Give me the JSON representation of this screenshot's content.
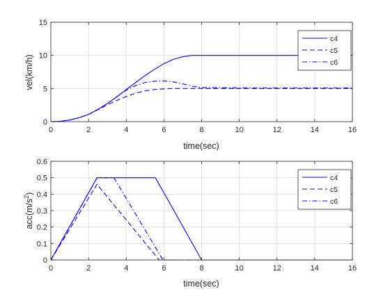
{
  "colors": {
    "series": "#0000ff",
    "axis": "#262626",
    "grid": "#dfdfdf",
    "background": "#ffffff"
  },
  "chart_data": [
    {
      "type": "line",
      "xlabel": "time(sec)",
      "ylabel": "vel(km/h)",
      "xlim": [
        0,
        16
      ],
      "ylim": [
        0,
        15
      ],
      "xticks": [
        "0",
        "2",
        "4",
        "6",
        "8",
        "10",
        "12",
        "14",
        "16"
      ],
      "yticks": [
        "0",
        "5",
        "10",
        "15"
      ],
      "grid": true,
      "legend_position": "top-right",
      "series": [
        {
          "name": "c4",
          "style": "solid",
          "x": [
            0,
            0.5,
            1,
            1.5,
            2,
            2.5,
            3,
            3.5,
            4,
            4.5,
            5,
            5.5,
            6,
            6.5,
            7,
            7.5,
            8,
            10,
            12,
            14,
            16
          ],
          "y": [
            0,
            0.05,
            0.25,
            0.6,
            1.1,
            1.85,
            2.75,
            3.75,
            4.85,
            5.9,
            6.95,
            7.9,
            8.75,
            9.4,
            9.8,
            10.0,
            10.0,
            10.0,
            10.0,
            10.0,
            10.0
          ]
        },
        {
          "name": "c5",
          "style": "dashed",
          "x": [
            0,
            0.5,
            1,
            1.5,
            2,
            2.5,
            3,
            3.5,
            4,
            4.5,
            5,
            5.5,
            6,
            6.5,
            7,
            8,
            10,
            12,
            14,
            16
          ],
          "y": [
            0,
            0.05,
            0.25,
            0.6,
            1.1,
            1.8,
            2.55,
            3.2,
            3.8,
            4.3,
            4.65,
            4.85,
            4.95,
            5.0,
            5.0,
            5.0,
            5.0,
            5.0,
            5.0,
            5.0
          ]
        },
        {
          "name": "c6",
          "style": "dashdot",
          "x": [
            0,
            0.5,
            1,
            1.5,
            2,
            2.5,
            3,
            3.5,
            4,
            4.5,
            5,
            5.5,
            6,
            6.5,
            7,
            7.5,
            8,
            10,
            12,
            14,
            16
          ],
          "y": [
            0,
            0.05,
            0.25,
            0.6,
            1.1,
            1.85,
            2.75,
            3.75,
            4.75,
            5.45,
            5.9,
            6.1,
            6.15,
            6.0,
            5.7,
            5.35,
            5.15,
            5.1,
            5.1,
            5.1,
            5.1
          ]
        }
      ]
    },
    {
      "type": "line",
      "xlabel": "time(sec)",
      "ylabel": "acc(m/s",
      "ylabel_sup": "2",
      "ylabel_end": ")",
      "xlim": [
        0,
        16
      ],
      "ylim": [
        0,
        0.6
      ],
      "xticks": [
        "0",
        "2",
        "4",
        "6",
        "8",
        "10",
        "12",
        "14",
        "16"
      ],
      "yticks": [
        "0",
        "0.1",
        "0.2",
        "0.3",
        "0.4",
        "0.5",
        "0.6"
      ],
      "grid": true,
      "legend_position": "top-right",
      "series": [
        {
          "name": "c4",
          "style": "solid",
          "x": [
            0,
            2.45,
            5.55,
            8.0,
            16
          ],
          "y": [
            0,
            0.5,
            0.5,
            0,
            0
          ]
        },
        {
          "name": "c5",
          "style": "dashed",
          "x": [
            0,
            2.45,
            5.75,
            16
          ],
          "y": [
            0,
            0.46,
            0,
            0
          ]
        },
        {
          "name": "c6",
          "style": "dashdot",
          "x": [
            0,
            2.45,
            3.35,
            5.95,
            16
          ],
          "y": [
            0,
            0.5,
            0.5,
            0,
            0
          ]
        }
      ]
    }
  ]
}
